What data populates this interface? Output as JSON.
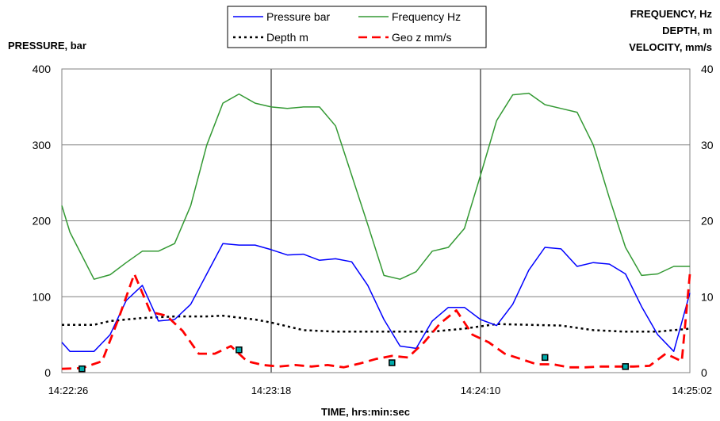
{
  "chart_data": {
    "type": "line",
    "title": "",
    "ylabel": "PRESSURE, bar",
    "y2label": [
      "FREQUENCY, Hz",
      "DEPTH, m",
      "VELOCITY,  mm/s"
    ],
    "xlabel": "TIME, hrs:min:sec",
    "x_ticks": [
      "14:22:26",
      "14:23:18",
      "14:24:10",
      "14:25:02"
    ],
    "x_range_sec": [
      0,
      156
    ],
    "ylim": [
      0,
      400
    ],
    "y_ticks": [
      0,
      100,
      200,
      300,
      400
    ],
    "y2lim": [
      0,
      40
    ],
    "y2_ticks": [
      0,
      10,
      20,
      30,
      40
    ],
    "grid": true,
    "legend_position": "top-center",
    "series": [
      {
        "name": "Pressure bar",
        "axis": "left",
        "color": "#0000ff",
        "style": "solid",
        "x": [
          0,
          2,
          8,
          12,
          16,
          20,
          24,
          28,
          32,
          36,
          40,
          44,
          48,
          52,
          56,
          60,
          64,
          68,
          72,
          76,
          80,
          84,
          88,
          92,
          96,
          100,
          104,
          108,
          112,
          116,
          120,
          124,
          128,
          132,
          136,
          140,
          144,
          148,
          152,
          156
        ],
        "values": [
          40,
          28,
          28,
          50,
          95,
          115,
          68,
          70,
          90,
          130,
          170,
          168,
          168,
          162,
          155,
          156,
          148,
          150,
          146,
          115,
          70,
          35,
          32,
          68,
          86,
          86,
          70,
          62,
          90,
          135,
          165,
          163,
          140,
          145,
          143,
          130,
          87,
          50,
          28,
          105
        ]
      },
      {
        "name": "Frequency Hz",
        "axis": "right",
        "color": "#339933",
        "style": "solid",
        "x": [
          0,
          2,
          8,
          12,
          16,
          20,
          24,
          28,
          32,
          36,
          40,
          44,
          48,
          52,
          56,
          60,
          64,
          68,
          72,
          76,
          80,
          84,
          88,
          92,
          96,
          100,
          104,
          108,
          112,
          116,
          120,
          124,
          128,
          132,
          136,
          140,
          144,
          148,
          152,
          156
        ],
        "values": [
          22,
          18.5,
          12.3,
          12.9,
          14.5,
          16,
          16,
          17,
          22,
          30,
          35.5,
          36.7,
          35.5,
          35,
          34.8,
          35,
          35,
          32.5,
          26,
          19.5,
          12.8,
          12.3,
          13.3,
          16,
          16.5,
          19,
          26,
          33.2,
          36.6,
          36.8,
          35.3,
          34.8,
          34.3,
          30,
          23,
          16.5,
          12.8,
          13,
          14,
          14
        ]
      },
      {
        "name": "Depth m",
        "axis": "right",
        "color": "#000000",
        "style": "dotted",
        "x": [
          0,
          8,
          12,
          20,
          28,
          36,
          40,
          48,
          52,
          60,
          68,
          76,
          84,
          92,
          100,
          108,
          116,
          124,
          132,
          140,
          148,
          156
        ],
        "values": [
          6.3,
          6.3,
          6.8,
          7.2,
          7.4,
          7.4,
          7.5,
          7,
          6.6,
          5.6,
          5.4,
          5.4,
          5.4,
          5.4,
          5.8,
          6.4,
          6.3,
          6.2,
          5.6,
          5.4,
          5.4,
          5.8
        ]
      },
      {
        "name": "Geo z mm/s",
        "axis": "right",
        "color": "#ff0000",
        "style": "dashed",
        "x": [
          0,
          5,
          10,
          14,
          18,
          22,
          26,
          30,
          34,
          38,
          42,
          46,
          50,
          54,
          58,
          62,
          66,
          70,
          74,
          78,
          82,
          86,
          90,
          94,
          98,
          102,
          106,
          110,
          114,
          118,
          122,
          126,
          130,
          134,
          138,
          142,
          146,
          150,
          154,
          156
        ],
        "values": [
          0.5,
          0.6,
          1.5,
          7,
          13,
          8,
          7.5,
          5.5,
          2.5,
          2.5,
          3.5,
          1.5,
          1,
          0.8,
          1,
          0.8,
          1,
          0.7,
          1.2,
          1.8,
          2.2,
          2,
          4,
          6.5,
          8.2,
          5,
          4,
          2.5,
          1.8,
          1.1,
          1.1,
          0.7,
          0.7,
          0.8,
          0.8,
          0.8,
          0.9,
          2.5,
          1.5,
          13
        ]
      }
    ],
    "markers": {
      "x": [
        5,
        44,
        82,
        120,
        140
      ],
      "values": [
        0.5,
        3,
        1.3,
        2,
        0.8
      ],
      "axis": "right"
    }
  }
}
